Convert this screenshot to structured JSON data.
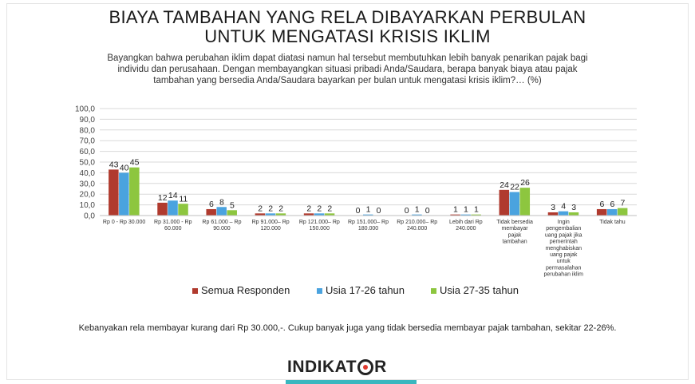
{
  "title_line1": "BIAYA TAMBAHAN YANG RELA DIBAYARKAN PERBULAN",
  "title_line2": "UNTUK MENGATASI KRISIS IKLIM",
  "subtitle_line1": "Bayangkan bahwa perubahan iklim dapat diatasi namun hal tersebut membutuhkan lebih banyak penarikan pajak bagi",
  "subtitle_line2": "individu dan perusahaan. Dengan membayangkan situasi pribadi Anda/Saudara, berapa banyak biaya atau pajak",
  "subtitle_line3": "tambahan yang bersedia Anda/Saudara bayarkan per bulan untuk mengatasi krisis iklim?… (%)",
  "note": "Kebanyakan rela membayar kurang dari Rp 30.000,-. Cukup banyak juga yang tidak bersedia membayar pajak tambahan, sekitar 22-26%.",
  "logo": {
    "before": "INDIKAT",
    "after": "R"
  },
  "colors": {
    "series1": "#b03a2e",
    "series2": "#4aa3df",
    "series3": "#8dc63f",
    "grid": "#d9d9d9",
    "brand_teal": "#39b7bf"
  },
  "chart_data": {
    "type": "bar",
    "ylim": [
      0,
      100
    ],
    "yticks": [
      "0,0",
      "10,0",
      "20,0",
      "30,0",
      "40,0",
      "50,0",
      "60,0",
      "70,0",
      "80,0",
      "90,0",
      "100,0"
    ],
    "grid": true,
    "legend_position": "bottom",
    "categories": [
      [
        "Rp 0 - Rp 30.000"
      ],
      [
        "Rp 31.000 - Rp",
        "60.000"
      ],
      [
        "Rp 61.000 – Rp",
        "90.000"
      ],
      [
        "Rp 91.000– Rp",
        "120.000"
      ],
      [
        "Rp 121.000– Rp",
        "150.000"
      ],
      [
        "Rp 151.000– Rp",
        "180.000"
      ],
      [
        "Rp 210.000– Rp",
        "240.000"
      ],
      [
        "Lebih dari Rp",
        "240.000"
      ],
      [
        "Tidak bersedia",
        "membayar",
        "pajak",
        "tambahan"
      ],
      [
        "Ingin",
        "pengembalian",
        "uang pajak jika",
        "pemerintah",
        "menghabiskan",
        "uang pajak",
        "untuk",
        "permasalahan",
        "perubahan iklim"
      ],
      [
        "Tidak tahu"
      ]
    ],
    "series": [
      {
        "name": "Semua Responden",
        "values": [
          43,
          12,
          6,
          2,
          2,
          0,
          0,
          1,
          24,
          3,
          6
        ]
      },
      {
        "name": "Usia 17-26 tahun",
        "values": [
          40,
          14,
          8,
          2,
          2,
          1,
          1,
          1,
          22,
          4,
          6
        ]
      },
      {
        "name": "Usia 27-35 tahun",
        "values": [
          45,
          11,
          5,
          2,
          2,
          0,
          0,
          1,
          26,
          3,
          7
        ]
      }
    ]
  }
}
